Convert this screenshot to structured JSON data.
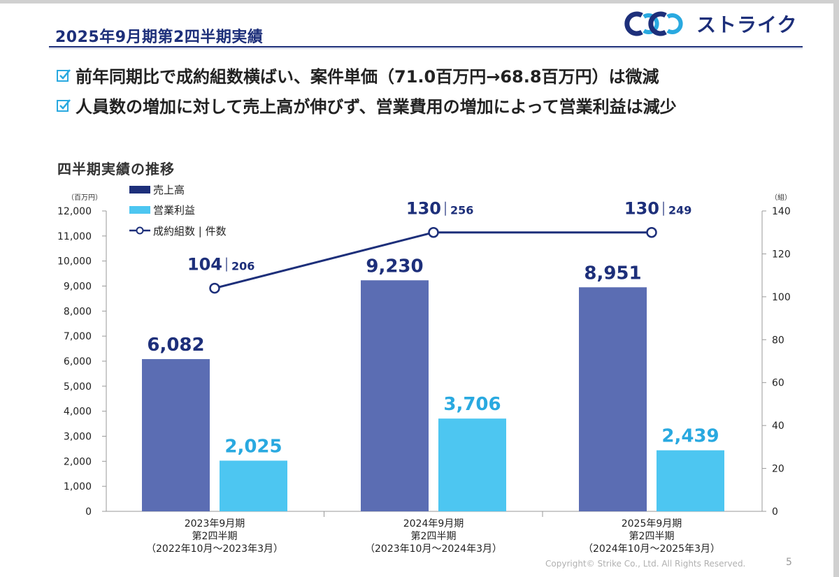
{
  "header": {
    "title": "2025年9月期第2四半期実績",
    "logo_text": "ストライク"
  },
  "bullets": [
    "前年同期比で成約組数横ばい、案件単価（71.0百万円→68.8百万円）は微減",
    "人員数の増加に対して売上高が伸びず、営業費用の増加によって営業利益は減少"
  ],
  "chart_title": "四半期実績の推移",
  "chart_data": {
    "type": "bar",
    "title": "四半期実績の推移",
    "left_unit": "（百万円）",
    "right_unit": "（組）",
    "categories": [
      [
        "2023年9月期",
        "第2四半期",
        "（2022年10月～2023年3月）"
      ],
      [
        "2024年9月期",
        "第2四半期",
        "（2023年10月～2024年3月）"
      ],
      [
        "2025年9月期",
        "第2四半期",
        "（2024年10月～2025年3月）"
      ]
    ],
    "series": [
      {
        "name": "売上高",
        "axis": "left",
        "color": "#5b6db3",
        "legend_color": "#1d2f7a",
        "label_color": "#1d2f7a",
        "values": [
          6082,
          9230,
          8951
        ],
        "labels": [
          "6,082",
          "9,230",
          "8,951"
        ]
      },
      {
        "name": "営業利益",
        "axis": "left",
        "color": "#4dc6f1",
        "legend_color": "#4dc6f1",
        "label_color": "#29a9e0",
        "values": [
          2025,
          3706,
          2439
        ],
        "labels": [
          "2,025",
          "3,706",
          "2,439"
        ]
      },
      {
        "name": "成約組数 | 件数",
        "type": "line",
        "axis": "right",
        "color": "#1d2f7a",
        "values": [
          104,
          130,
          130
        ],
        "counts": [
          206,
          256,
          249
        ]
      }
    ],
    "ylim_left": [
      0,
      12000
    ],
    "yticks_left": [
      "0",
      "1,000",
      "2,000",
      "3,000",
      "4,000",
      "5,000",
      "6,000",
      "7,000",
      "8,000",
      "9,000",
      "10,000",
      "11,000",
      "12,000"
    ],
    "ylim_right": [
      0,
      140
    ],
    "yticks_right": [
      "0",
      "20",
      "40",
      "60",
      "80",
      "100",
      "120",
      "140"
    ],
    "legend_position": "top-left"
  },
  "footer": {
    "copyright": "Copyright© Strike Co., Ltd. All Rights Reserved.",
    "page": "5"
  }
}
